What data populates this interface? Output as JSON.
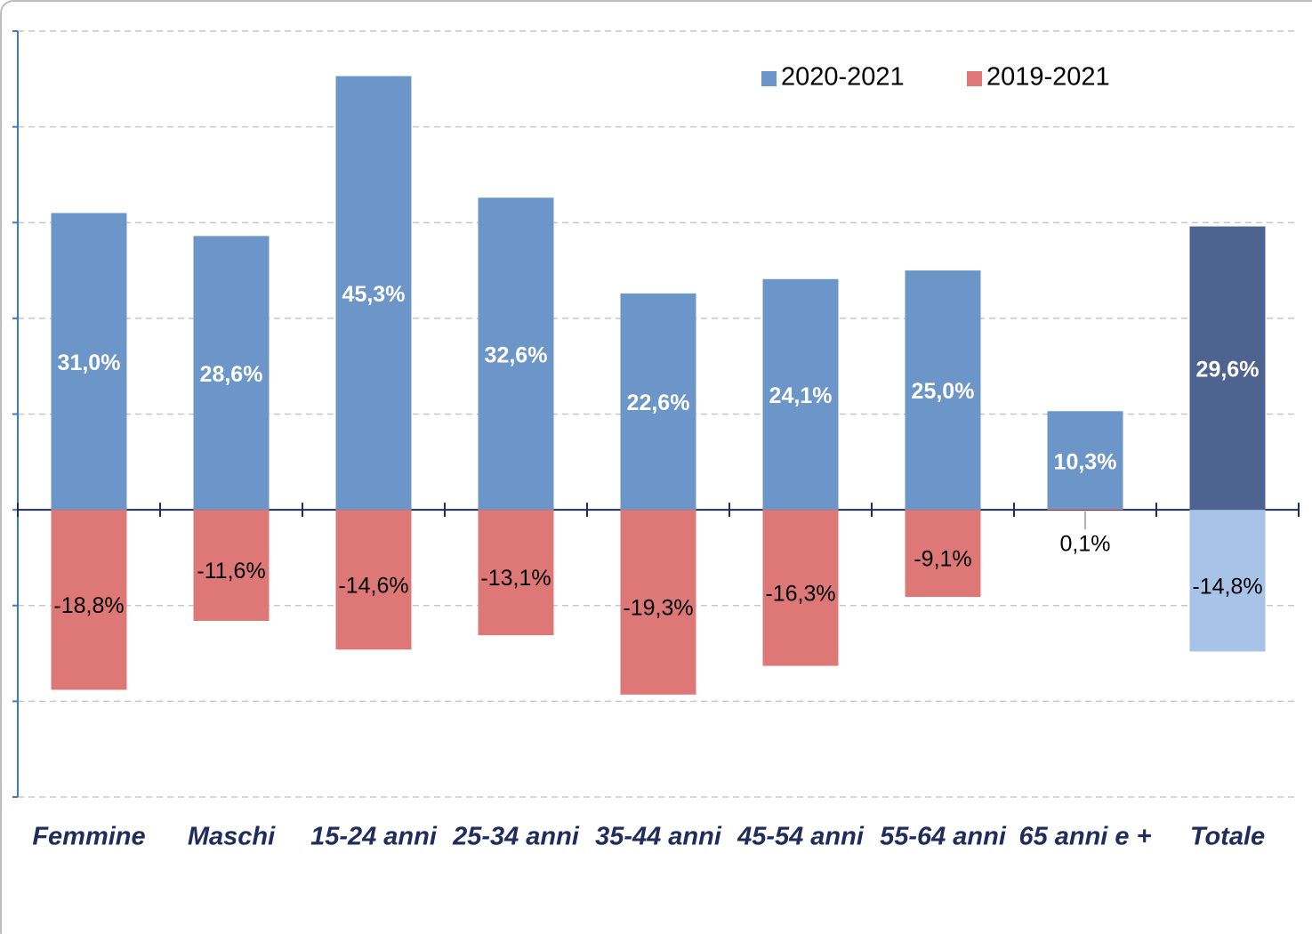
{
  "chart_data": {
    "type": "bar",
    "categories": [
      "Femmine",
      "Maschi",
      "15-24 anni",
      "25-34 anni",
      "35-44 anni",
      "45-54 anni",
      "55-64 anni",
      "65 anni e +",
      "Totale"
    ],
    "series": [
      {
        "name": "2020-2021",
        "color": "#6d96c8",
        "colors": [
          "#6d96c8",
          "#6d96c8",
          "#6d96c8",
          "#6d96c8",
          "#6d96c8",
          "#6d96c8",
          "#6d96c8",
          "#6d96c8",
          "#4e638f"
        ],
        "values": [
          31.0,
          28.6,
          45.3,
          32.6,
          22.6,
          24.1,
          25.0,
          10.3,
          29.6
        ],
        "value_labels": [
          "31,0%",
          "28,6%",
          "45,3%",
          "32,6%",
          "22,6%",
          "24,1%",
          "25,0%",
          "10,3%",
          "29,6%"
        ]
      },
      {
        "name": "2019-2021",
        "color": "#dd7876",
        "colors": [
          "#dd7876",
          "#dd7876",
          "#dd7876",
          "#dd7876",
          "#dd7876",
          "#dd7876",
          "#dd7876",
          "#dd7876",
          "#a7c3e8"
        ],
        "values": [
          -18.8,
          -11.6,
          -14.6,
          -13.1,
          -19.3,
          -16.3,
          -9.1,
          0.1,
          -14.8
        ],
        "value_labels": [
          "-18,8%",
          "-11,6%",
          "-14,6%",
          "-13,1%",
          "-19,3%",
          "-16,3%",
          "-9,1%",
          "0,1%",
          "-14,8%"
        ]
      }
    ],
    "ylim": [
      -30,
      50
    ],
    "yticks": [
      -30,
      -20,
      -10,
      0,
      10,
      20,
      30,
      40,
      50
    ],
    "grid": true,
    "legend": "top-right"
  }
}
